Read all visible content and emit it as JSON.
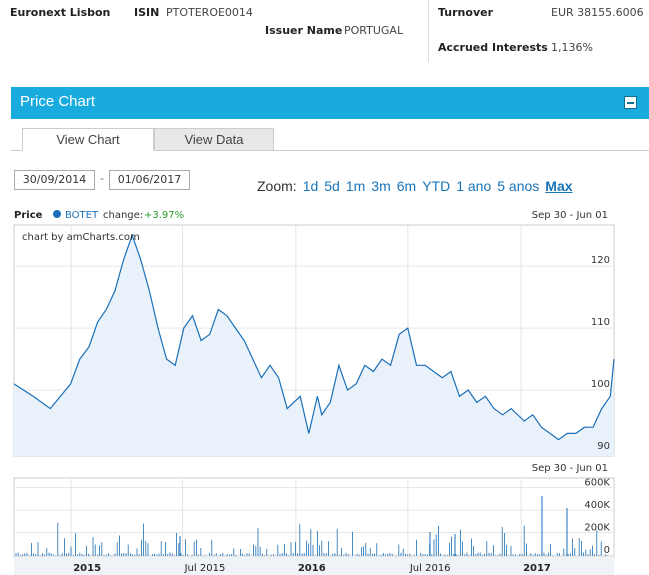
{
  "info": {
    "exchange": "Euronext Lisbon",
    "isin_label": "ISIN",
    "isin_value": "PTOTEROE0014",
    "issuer_label": "Issuer Name",
    "issuer_value": "PORTUGAL",
    "turnover_label": "Turnover",
    "turnover_value": "EUR 38155.6006",
    "accrued_label": "Accrued Interests",
    "accrued_value": "1,136%"
  },
  "panel": {
    "title": "Price Chart",
    "collapse_icon": "minus-box-icon",
    "tabs": [
      {
        "label": "View Chart",
        "active": true
      },
      {
        "label": "View Data",
        "active": false
      }
    ]
  },
  "controls": {
    "date_from": "30/09/2014",
    "date_separator": "-",
    "date_to": "01/06/2017",
    "zoom_label": "Zoom:",
    "zoom_options": [
      "1d",
      "5d",
      "1m",
      "3m",
      "6m",
      "YTD",
      "1 ano",
      "5 anos",
      "Max"
    ],
    "zoom_selected": "Max"
  },
  "legend": {
    "price_label": "Price",
    "series_name": "BOTET",
    "change_label": "change:",
    "change_value": "+3.97%",
    "change_color": "#2a9d2a",
    "period": "Sep 30 - Jun 01",
    "volume_period": "Sep 30 - Jun 01",
    "credit": "chart by amCharts.com"
  },
  "chart_data": [
    {
      "type": "line",
      "series": [
        {
          "name": "BOTET",
          "x": [
            "2014-09-30",
            "2014-10-31",
            "2014-11-28",
            "2014-12-31",
            "2015-01-15",
            "2015-01-30",
            "2015-02-13",
            "2015-02-27",
            "2015-03-13",
            "2015-03-27",
            "2015-04-10",
            "2015-04-24",
            "2015-05-08",
            "2015-05-22",
            "2015-06-05",
            "2015-06-19",
            "2015-07-03",
            "2015-07-17",
            "2015-07-31",
            "2015-08-14",
            "2015-08-28",
            "2015-09-11",
            "2015-09-25",
            "2015-10-09",
            "2015-10-23",
            "2015-11-06",
            "2015-11-20",
            "2015-12-04",
            "2015-12-18",
            "2016-01-08",
            "2016-01-22",
            "2016-02-05",
            "2016-02-12",
            "2016-02-26",
            "2016-03-11",
            "2016-03-25",
            "2016-04-08",
            "2016-04-22",
            "2016-05-06",
            "2016-05-20",
            "2016-06-03",
            "2016-06-17",
            "2016-07-01",
            "2016-07-15",
            "2016-07-29",
            "2016-08-12",
            "2016-08-26",
            "2016-09-09",
            "2016-09-23",
            "2016-10-07",
            "2016-10-21",
            "2016-11-04",
            "2016-11-18",
            "2016-12-02",
            "2016-12-16",
            "2017-01-06",
            "2017-01-20",
            "2017-02-03",
            "2017-02-17",
            "2017-03-03",
            "2017-03-17",
            "2017-03-31",
            "2017-04-14",
            "2017-04-28",
            "2017-05-12",
            "2017-05-26",
            "2017-06-01"
          ],
          "values": [
            101,
            99,
            97,
            101,
            105,
            107,
            111,
            113,
            116,
            121,
            125,
            121,
            116,
            110,
            105,
            104,
            110,
            112,
            108,
            109,
            113,
            112,
            110,
            108,
            105,
            102,
            104,
            102,
            97,
            99,
            93,
            99,
            96,
            98,
            104,
            100,
            101,
            104,
            103,
            105,
            104,
            109,
            110,
            104,
            104,
            103,
            102,
            103,
            99,
            100,
            98,
            99,
            97,
            96,
            97,
            95,
            96,
            94,
            93,
            92,
            93,
            93,
            94,
            94,
            97,
            99,
            105
          ]
        }
      ],
      "ylim": [
        90,
        126
      ],
      "yticks": [
        90,
        100,
        110,
        120
      ],
      "xticks": [
        "2015",
        "Jul 2015",
        "2016",
        "Jul 2016",
        "2017"
      ],
      "grid": true
    },
    {
      "type": "bar",
      "yticks": [
        "0",
        "200K",
        "400K",
        "600K"
      ],
      "ylim": [
        0,
        650000
      ],
      "grid": true
    }
  ]
}
